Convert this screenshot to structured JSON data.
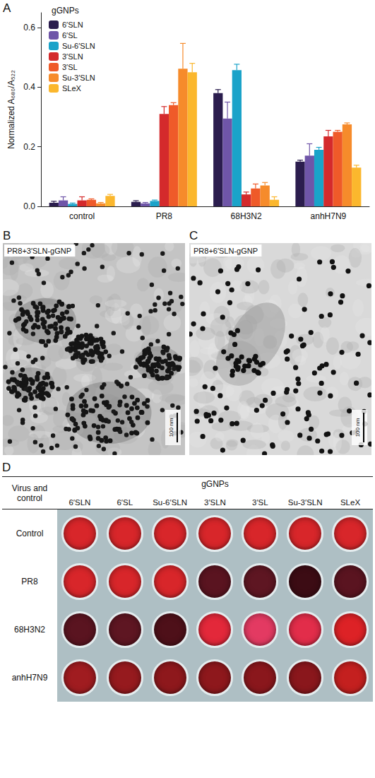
{
  "chart_data": {
    "type": "bar",
    "panel_label": "A",
    "legend_title": "gGNPs",
    "ylabel": "Normalized A₆₈₀/A₅₂₂",
    "categories": [
      "control",
      "PR8",
      "68H3N2",
      "anhH7N9"
    ],
    "series": [
      {
        "name": "6′SLN",
        "color": "#2b1d4e",
        "values": [
          0.012,
          0.015,
          0.38,
          0.15
        ],
        "errors": [
          0.005,
          0.004,
          0.012,
          0.005
        ]
      },
      {
        "name": "6′SL",
        "color": "#6f55a8",
        "values": [
          0.02,
          0.01,
          0.295,
          0.17
        ],
        "errors": [
          0.012,
          0.003,
          0.055,
          0.04
        ]
      },
      {
        "name": "Su-6′SLN",
        "color": "#1aa3c9",
        "values": [
          0.008,
          0.018,
          0.457,
          0.19
        ],
        "errors": [
          0.003,
          0.003,
          0.02,
          0.008
        ]
      },
      {
        "name": "3′SLN",
        "color": "#d42a2c",
        "values": [
          0.02,
          0.31,
          0.04,
          0.235
        ],
        "errors": [
          0.012,
          0.025,
          0.008,
          0.02
        ]
      },
      {
        "name": "3′SL",
        "color": "#ef5a29",
        "values": [
          0.022,
          0.34,
          0.06,
          0.25
        ],
        "errors": [
          0.003,
          0.008,
          0.015,
          0.005
        ]
      },
      {
        "name": "Su-3′SLN",
        "color": "#f68b2b",
        "values": [
          0.01,
          0.462,
          0.07,
          0.275
        ],
        "errors": [
          0.003,
          0.085,
          0.01,
          0.005
        ]
      },
      {
        "name": "SLeX",
        "color": "#fbb72d",
        "values": [
          0.035,
          0.45,
          0.022,
          0.13
        ],
        "errors": [
          0.005,
          0.03,
          0.01,
          0.008
        ]
      }
    ],
    "ylim": [
      0,
      0.65
    ],
    "yticks": [
      {
        "value": 0,
        "label": "0.0"
      },
      0.2,
      0.4,
      0.6
    ],
    "grid": false,
    "legend": "upper left"
  },
  "micrographs": [
    {
      "panel_label": "B",
      "caption": "PR8+3′SLN-gGNP",
      "scale_bar": "100 nm"
    },
    {
      "panel_label": "C",
      "caption": "PR8+6′SLN-gGNP",
      "scale_bar": "100 nm"
    }
  ],
  "plate": {
    "panel_label": "D",
    "header": {
      "row_head": "Virus and control",
      "group": "gGNPs",
      "columns": [
        "6′SLN",
        "6′SL",
        "Su-6′SLN",
        "3′SLN",
        "3′SL",
        "Su-3′SLN",
        "SLeX"
      ]
    },
    "rows": [
      {
        "label": "Control",
        "wells": [
          "#d8262a",
          "#d8262a",
          "#d8262a",
          "#d8262a",
          "#d8262a",
          "#d8262a",
          "#d8262a"
        ]
      },
      {
        "label": "PR8",
        "wells": [
          "#d8262a",
          "#d8262a",
          "#d8262a",
          "#5a1420",
          "#5e1622",
          "#3c0c14",
          "#5a1420"
        ]
      },
      {
        "label": "68H3N2",
        "wells": [
          "#5a1420",
          "#5e1622",
          "#4e1019",
          "#e3283a",
          "#e33a62",
          "#e22d4a",
          "#dd2226"
        ]
      },
      {
        "label": "anhH7N9",
        "wells": [
          "#a01c20",
          "#961a1e",
          "#8e181c",
          "#8e181c",
          "#8a171c",
          "#8a171c",
          "#c4201f"
        ]
      }
    ]
  }
}
